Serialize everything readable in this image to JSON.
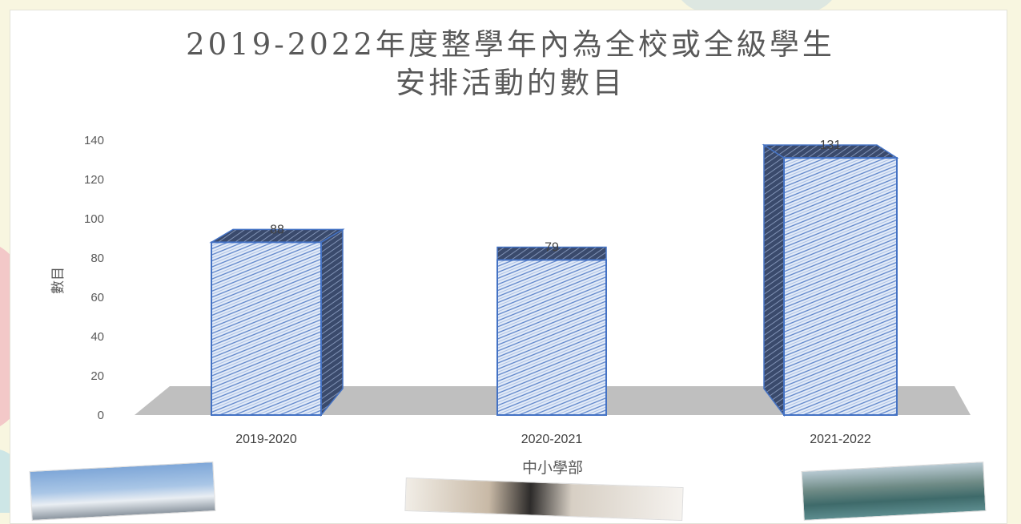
{
  "chart_data": {
    "type": "bar",
    "title_line1": "2019-2022年度整學年內為全校或全級學生",
    "title_line2": "安排活動的數目",
    "xlabel": "中小學部",
    "ylabel": "數目",
    "categories": [
      "2019-2020",
      "2020-2021",
      "2021-2022"
    ],
    "values": [
      88,
      79,
      131
    ],
    "ylim": [
      0,
      140
    ],
    "yticks": [
      0,
      20,
      40,
      60,
      80,
      100,
      120,
      140
    ],
    "grid": false,
    "style": "3d-hatched-column",
    "bar_color": "#4472c4",
    "floor_color": "#bfbfbf"
  }
}
